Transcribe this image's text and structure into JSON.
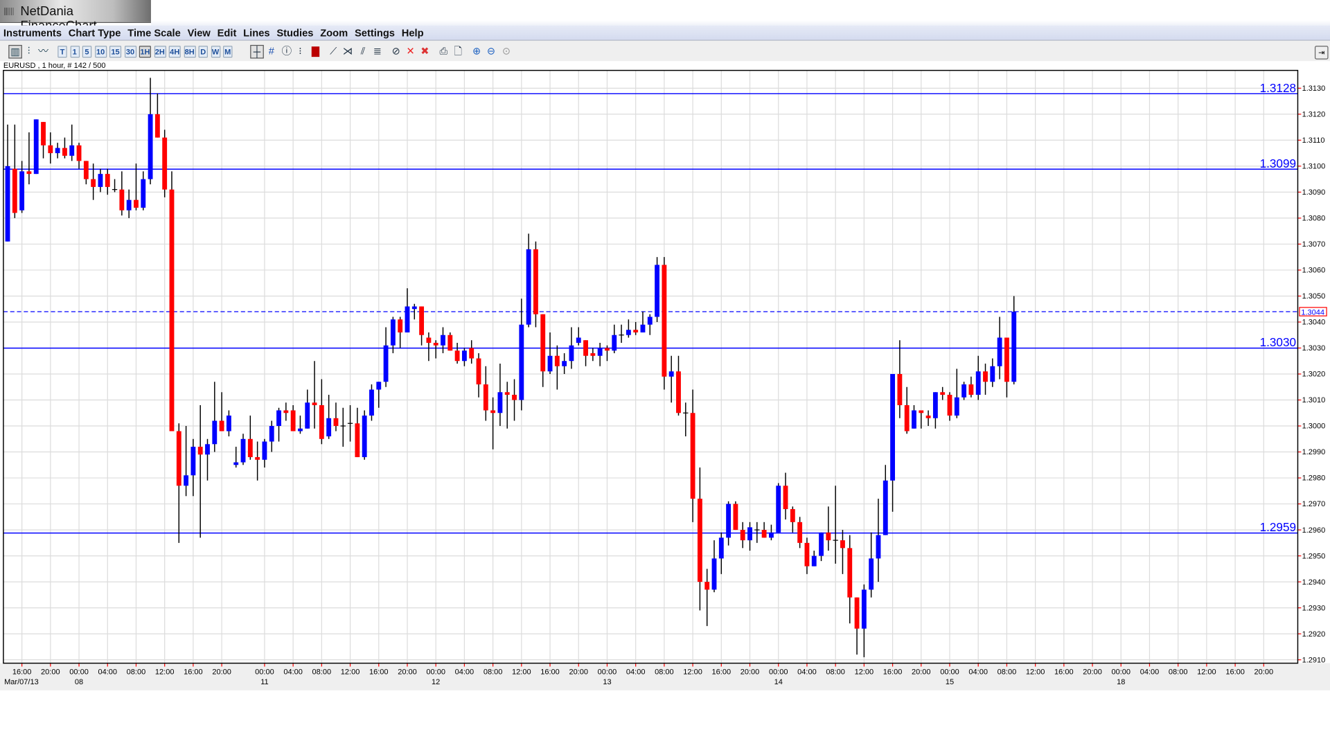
{
  "window": {
    "title": "NetDania FinanceChart"
  },
  "menu": [
    "Instruments",
    "Chart Type",
    "Time Scale",
    "View",
    "Edit",
    "Lines",
    "Studies",
    "Zoom",
    "Settings",
    "Help"
  ],
  "toolbar": {
    "chart_type_icons": [
      "candlestick-icon",
      "bar-chart-icon",
      "line-chart-icon"
    ],
    "time_scales": [
      "T",
      "1",
      "5",
      "10",
      "15",
      "30",
      "1H",
      "2H",
      "4H",
      "8H",
      "D",
      "W",
      "M"
    ],
    "selected_time_scale": "1H",
    "tool_icons": [
      "crosshair-icon",
      "grid-icon",
      "info-icon",
      "price-scale-icon",
      "volume-icon",
      "trend-line-icon",
      "fan-line-icon",
      "parallel-lines-icon",
      "fibonacci-icon",
      "delete-line-icon",
      "delete-icon",
      "delete-all-icon",
      "print-icon",
      "print-preview-icon",
      "zoom-in-icon",
      "zoom-out-icon",
      "zoom-reset-icon"
    ]
  },
  "info": "EURUSD , 1 hour, # 142 / 500",
  "colors": {
    "up": "#0000ff",
    "down": "#ff0000",
    "line": "#0000ff",
    "current_box": "#ff0000"
  },
  "chart_data": {
    "type": "candlestick",
    "instrument": "EURUSD",
    "interval": "1 hour",
    "ylim": [
      1.291,
      1.313
    ],
    "grid": true,
    "y_ticks": [
      "1.3130",
      "1.3120",
      "1.3110",
      "1.3100",
      "1.3090",
      "1.3080",
      "1.3070",
      "1.3060",
      "1.3050",
      "1.3040",
      "1.3030",
      "1.3020",
      "1.3010",
      "1.3000",
      "1.2990",
      "1.2980",
      "1.2970",
      "1.2960",
      "1.2950",
      "1.2940",
      "1.2930",
      "1.2920",
      "1.2910"
    ],
    "horizontal_lines": [
      {
        "label": "1.3128",
        "value": 1.3128
      },
      {
        "label": "1.3099",
        "value": 1.3099
      },
      {
        "label": "1.3030",
        "value": 1.303
      },
      {
        "label": "1.2959",
        "value": 1.2959
      }
    ],
    "current_price": {
      "label": "1.3044",
      "value": 1.3044
    },
    "start_date": "Mar/07/13",
    "x_ticks": [
      [
        2,
        "16:00",
        ""
      ],
      [
        6,
        "20:00",
        ""
      ],
      [
        10,
        "00:00",
        "08"
      ],
      [
        14,
        "04:00",
        ""
      ],
      [
        18,
        "08:00",
        ""
      ],
      [
        22,
        "12:00",
        ""
      ],
      [
        26,
        "16:00",
        ""
      ],
      [
        30,
        "20:00",
        ""
      ],
      [
        36,
        "00:00",
        "11"
      ],
      [
        40,
        "04:00",
        ""
      ],
      [
        44,
        "08:00",
        ""
      ],
      [
        48,
        "12:00",
        ""
      ],
      [
        52,
        "16:00",
        ""
      ],
      [
        56,
        "20:00",
        ""
      ],
      [
        60,
        "00:00",
        "12"
      ],
      [
        64,
        "04:00",
        ""
      ],
      [
        68,
        "08:00",
        ""
      ],
      [
        72,
        "12:00",
        ""
      ],
      [
        76,
        "16:00",
        ""
      ],
      [
        80,
        "20:00",
        ""
      ],
      [
        84,
        "00:00",
        "13"
      ],
      [
        88,
        "04:00",
        ""
      ],
      [
        92,
        "08:00",
        ""
      ],
      [
        96,
        "12:00",
        ""
      ],
      [
        100,
        "16:00",
        ""
      ],
      [
        104,
        "20:00",
        ""
      ],
      [
        108,
        "00:00",
        "14"
      ],
      [
        112,
        "04:00",
        ""
      ],
      [
        116,
        "08:00",
        ""
      ],
      [
        120,
        "12:00",
        ""
      ],
      [
        124,
        "16:00",
        ""
      ],
      [
        128,
        "20:00",
        ""
      ],
      [
        132,
        "00:00",
        "15"
      ],
      [
        136,
        "04:00",
        ""
      ],
      [
        140,
        "08:00",
        ""
      ],
      [
        144,
        "12:00",
        ""
      ],
      [
        148,
        "16:00",
        ""
      ],
      [
        152,
        "20:00",
        ""
      ],
      [
        156,
        "00:00",
        "18"
      ],
      [
        160,
        "04:00",
        ""
      ],
      [
        164,
        "08:00",
        ""
      ],
      [
        168,
        "12:00",
        ""
      ],
      [
        172,
        "16:00",
        ""
      ],
      [
        176,
        "20:00",
        ""
      ]
    ],
    "ohlc_fields": [
      "open",
      "high",
      "low",
      "close"
    ],
    "candles": [
      [
        1.3071,
        1.3116,
        1.3071,
        1.31
      ],
      [
        1.3099,
        1.3116,
        1.308,
        1.3082
      ],
      [
        1.3083,
        1.3102,
        1.3082,
        1.3098
      ],
      [
        1.3098,
        1.3113,
        1.3093,
        1.3097
      ],
      [
        1.3097,
        1.3118,
        1.3097,
        1.3118
      ],
      [
        1.3117,
        1.3117,
        1.3103,
        1.3108
      ],
      [
        1.3108,
        1.3113,
        1.3101,
        1.3105
      ],
      [
        1.3105,
        1.3109,
        1.3103,
        1.3107
      ],
      [
        1.3107,
        1.3111,
        1.3103,
        1.3104
      ],
      [
        1.3104,
        1.3116,
        1.3102,
        1.3108
      ],
      [
        1.3108,
        1.3109,
        1.3099,
        1.3102
      ],
      [
        1.3102,
        1.3102,
        1.3093,
        1.3095
      ],
      [
        1.3095,
        1.3101,
        1.3087,
        1.3092
      ],
      [
        1.3092,
        1.3099,
        1.309,
        1.3097
      ],
      [
        1.3097,
        1.3099,
        1.3089,
        1.3092
      ],
      [
        1.3091,
        1.3095,
        1.309,
        1.3091
      ],
      [
        1.3091,
        1.3098,
        1.3081,
        1.3083
      ],
      [
        1.3083,
        1.3091,
        1.308,
        1.3087
      ],
      [
        1.3087,
        1.3101,
        1.3083,
        1.3084
      ],
      [
        1.3084,
        1.3098,
        1.3083,
        1.3095
      ],
      [
        1.3095,
        1.3134,
        1.3093,
        1.312
      ],
      [
        1.312,
        1.3128,
        1.3111,
        1.3111
      ],
      [
        1.3111,
        1.3114,
        1.3088,
        1.3091
      ],
      [
        1.3091,
        1.3098,
        1.2998,
        1.2998
      ],
      [
        1.2998,
        1.3001,
        1.2955,
        1.2977
      ],
      [
        1.2977,
        1.3,
        1.2973,
        1.2981
      ],
      [
        1.2981,
        1.2995,
        1.2973,
        1.2992
      ],
      [
        1.2992,
        1.3008,
        1.2957,
        1.2989
      ],
      [
        1.2989,
        1.2995,
        1.2979,
        1.2993
      ],
      [
        1.2993,
        1.3017,
        1.299,
        1.3002
      ],
      [
        1.3002,
        1.3013,
        1.2998,
        1.2998
      ],
      [
        1.2998,
        1.3006,
        1.2996,
        1.3004
      ],
      [
        1.2985,
        1.2992,
        1.2984,
        1.2986
      ],
      [
        1.2986,
        1.2997,
        1.2985,
        1.2995
      ],
      [
        1.2995,
        1.3004,
        1.2987,
        1.2988
      ],
      [
        1.2988,
        1.2994,
        1.2979,
        1.2987
      ],
      [
        1.2987,
        1.2995,
        1.2984,
        1.2994
      ],
      [
        1.2994,
        1.3002,
        1.299,
        1.3
      ],
      [
        1.3,
        1.3007,
        1.2994,
        1.3006
      ],
      [
        1.3006,
        1.3009,
        1.3002,
        1.3005
      ],
      [
        1.3006,
        1.3008,
        1.2998,
        1.2998
      ],
      [
        1.2998,
        1.3004,
        1.2997,
        1.2999
      ],
      [
        1.2999,
        1.3014,
        1.2999,
        1.3009
      ],
      [
        1.3009,
        1.3025,
        1.2999,
        1.3008
      ],
      [
        1.3008,
        1.3018,
        1.2993,
        1.2995
      ],
      [
        1.2996,
        1.3012,
        1.2995,
        1.3003
      ],
      [
        1.3003,
        1.3009,
        1.2998,
        1.3
      ],
      [
        1.3,
        1.3007,
        1.2992,
        1.3
      ],
      [
        1.3001,
        1.3008,
        1.2994,
        1.3001
      ],
      [
        1.3001,
        1.3007,
        1.2988,
        1.2988
      ],
      [
        1.2988,
        1.3006,
        1.2987,
        1.3004
      ],
      [
        1.3004,
        1.3016,
        1.3002,
        1.3014
      ],
      [
        1.3014,
        1.3017,
        1.3007,
        1.3017
      ],
      [
        1.3017,
        1.3038,
        1.3015,
        1.3031
      ],
      [
        1.3031,
        1.3042,
        1.3028,
        1.3041
      ],
      [
        1.3041,
        1.3042,
        1.303,
        1.3036
      ],
      [
        1.3036,
        1.3053,
        1.3036,
        1.3046
      ],
      [
        1.3045,
        1.3047,
        1.3041,
        1.3046
      ],
      [
        1.3046,
        1.3046,
        1.3031,
        1.3035
      ],
      [
        1.3034,
        1.3036,
        1.3025,
        1.3032
      ],
      [
        1.3032,
        1.3033,
        1.3026,
        1.3031
      ],
      [
        1.3031,
        1.3038,
        1.3028,
        1.3035
      ],
      [
        1.3035,
        1.3036,
        1.3029,
        1.3029
      ],
      [
        1.3029,
        1.3032,
        1.3024,
        1.3025
      ],
      [
        1.3025,
        1.303,
        1.3023,
        1.3029
      ],
      [
        1.303,
        1.3033,
        1.3024,
        1.3026
      ],
      [
        1.3026,
        1.3028,
        1.3011,
        1.3016
      ],
      [
        1.3016,
        1.3023,
        1.3002,
        1.3006
      ],
      [
        1.3006,
        1.3011,
        1.2991,
        1.3005
      ],
      [
        1.3005,
        1.3024,
        1.3,
        1.3013
      ],
      [
        1.3013,
        1.3017,
        1.2999,
        1.3012
      ],
      [
        1.3012,
        1.3018,
        1.3002,
        1.301
      ],
      [
        1.301,
        1.3049,
        1.3006,
        1.3039
      ],
      [
        1.3039,
        1.3074,
        1.3038,
        1.3068
      ],
      [
        1.3068,
        1.3071,
        1.3038,
        1.3043
      ],
      [
        1.3043,
        1.3043,
        1.3015,
        1.3021
      ],
      [
        1.3021,
        1.3036,
        1.302,
        1.3027
      ],
      [
        1.3027,
        1.3031,
        1.3014,
        1.3023
      ],
      [
        1.3023,
        1.3028,
        1.302,
        1.3025
      ],
      [
        1.3025,
        1.3038,
        1.3022,
        1.3031
      ],
      [
        1.3032,
        1.3038,
        1.3031,
        1.3034
      ],
      [
        1.3033,
        1.3033,
        1.3023,
        1.3027
      ],
      [
        1.3028,
        1.303,
        1.3025,
        1.3027
      ],
      [
        1.3027,
        1.3032,
        1.3023,
        1.303
      ],
      [
        1.303,
        1.3031,
        1.3025,
        1.3029
      ],
      [
        1.3029,
        1.3039,
        1.3028,
        1.3035
      ],
      [
        1.3035,
        1.3039,
        1.3032,
        1.3035
      ],
      [
        1.3035,
        1.3041,
        1.3034,
        1.3037
      ],
      [
        1.3037,
        1.304,
        1.3035,
        1.3036
      ],
      [
        1.3036,
        1.3044,
        1.3036,
        1.3039
      ],
      [
        1.3039,
        1.3043,
        1.3035,
        1.3042
      ],
      [
        1.3042,
        1.3065,
        1.304,
        1.3062
      ],
      [
        1.3062,
        1.3065,
        1.3014,
        1.3019
      ],
      [
        1.3019,
        1.3027,
        1.3009,
        1.3021
      ],
      [
        1.3021,
        1.3027,
        1.3004,
        1.3005
      ],
      [
        1.3005,
        1.3009,
        1.2996,
        1.3005
      ],
      [
        1.3005,
        1.3014,
        1.2963,
        1.2972
      ],
      [
        1.2972,
        1.2984,
        1.2929,
        1.294
      ],
      [
        1.294,
        1.2945,
        1.2923,
        1.2937
      ],
      [
        1.2937,
        1.2956,
        1.2936,
        1.2949
      ],
      [
        1.2949,
        1.2959,
        1.2943,
        1.2957
      ],
      [
        1.2957,
        1.2971,
        1.2954,
        1.297
      ],
      [
        1.297,
        1.2971,
        1.296,
        1.296
      ],
      [
        1.296,
        1.2963,
        1.2953,
        1.2956
      ],
      [
        1.2956,
        1.2963,
        1.2952,
        1.2961
      ],
      [
        1.296,
        1.2963,
        1.2955,
        1.296
      ],
      [
        1.296,
        1.2963,
        1.2957,
        1.2957
      ],
      [
        1.2957,
        1.2962,
        1.2956,
        1.2959
      ],
      [
        1.2959,
        1.2978,
        1.2959,
        1.2977
      ],
      [
        1.2977,
        1.2982,
        1.2964,
        1.2968
      ],
      [
        1.2968,
        1.2969,
        1.2959,
        1.2963
      ],
      [
        1.2963,
        1.2965,
        1.2953,
        1.2955
      ],
      [
        1.2955,
        1.2957,
        1.2943,
        1.2946
      ],
      [
        1.2946,
        1.2952,
        1.2946,
        1.295
      ],
      [
        1.295,
        1.2959,
        1.2948,
        1.2959
      ],
      [
        1.2959,
        1.2969,
        1.2952,
        1.2956
      ],
      [
        1.2956,
        1.2977,
        1.2947,
        1.2956
      ],
      [
        1.2956,
        1.296,
        1.2943,
        1.2953
      ],
      [
        1.2953,
        1.2958,
        1.2924,
        1.2934
      ],
      [
        1.2934,
        1.2934,
        1.2912,
        1.2922
      ],
      [
        1.2922,
        1.2939,
        1.2911,
        1.2937
      ],
      [
        1.2937,
        1.2959,
        1.2934,
        1.2949
      ],
      [
        1.2949,
        1.2972,
        1.294,
        1.2958
      ],
      [
        1.2958,
        1.2985,
        1.2958,
        1.2979
      ],
      [
        1.2979,
        1.302,
        1.2967,
        1.302
      ],
      [
        1.302,
        1.3033,
        1.3003,
        1.3008
      ],
      [
        1.3008,
        1.3015,
        1.2997,
        1.2998
      ],
      [
        1.2999,
        1.3008,
        1.2999,
        1.3006
      ],
      [
        1.3006,
        1.3006,
        1.2999,
        1.3005
      ],
      [
        1.3004,
        1.3006,
        1.3,
        1.3003
      ],
      [
        1.3003,
        1.3013,
        1.2999,
        1.3013
      ],
      [
        1.3013,
        1.3015,
        1.301,
        1.3012
      ],
      [
        1.3012,
        1.3013,
        1.3002,
        1.3004
      ],
      [
        1.3004,
        1.3022,
        1.3003,
        1.3011
      ],
      [
        1.3011,
        1.3017,
        1.301,
        1.3016
      ],
      [
        1.3016,
        1.3019,
        1.3011,
        1.3012
      ],
      [
        1.3012,
        1.3027,
        1.301,
        1.3021
      ],
      [
        1.3021,
        1.3024,
        1.3012,
        1.3017
      ],
      [
        1.3017,
        1.3026,
        1.3015,
        1.3023
      ],
      [
        1.3023,
        1.3042,
        1.3018,
        1.3034
      ],
      [
        1.3034,
        1.3034,
        1.3011,
        1.3017
      ],
      [
        1.3017,
        1.305,
        1.3016,
        1.3044
      ]
    ]
  }
}
